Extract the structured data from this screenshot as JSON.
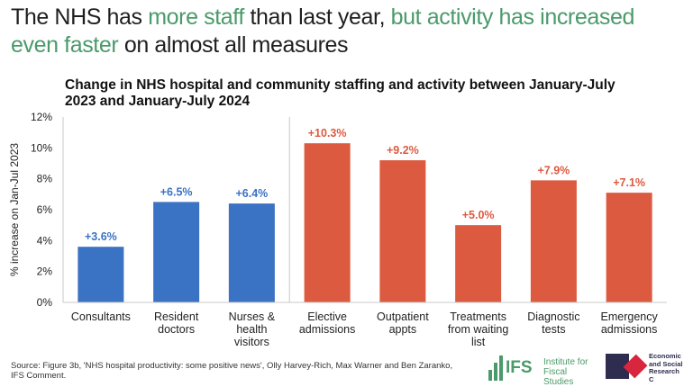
{
  "headline": {
    "part1": "The NHS has ",
    "part2": "more staff",
    "part3": " than last year, ",
    "part4": "but activity has increased even faster",
    "part5": " on almost all measures"
  },
  "chart_data": {
    "type": "bar",
    "title": "Change in NHS hospital and community staffing and activity between January-July 2023 and January-July 2024",
    "ylabel": "% increase on Jan-Jul 2023",
    "ylim": [
      0,
      12
    ],
    "yticks": [
      "0%",
      "2%",
      "4%",
      "6%",
      "8%",
      "10%",
      "12%"
    ],
    "categories": [
      [
        "Consultants"
      ],
      [
        "Resident",
        "doctors"
      ],
      [
        "Nurses &",
        "health",
        "visitors"
      ],
      [
        "Elective",
        "admissions"
      ],
      [
        "Outpatient",
        "appts"
      ],
      [
        "Treatments",
        "from waiting",
        "list"
      ],
      [
        "Diagnostic",
        "tests"
      ],
      [
        "Emergency",
        "admissions"
      ]
    ],
    "values": [
      3.6,
      6.5,
      6.4,
      10.3,
      9.2,
      5.0,
      7.9,
      7.1
    ],
    "data_labels": [
      "+3.6%",
      "+6.5%",
      "+6.4%",
      "+10.3%",
      "+9.2%",
      "+5.0%",
      "+7.9%",
      "+7.1%"
    ],
    "colors": [
      "#3a72c4",
      "#3a72c4",
      "#3a72c4",
      "#dc5a3f",
      "#dc5a3f",
      "#dc5a3f",
      "#dc5a3f",
      "#dc5a3f"
    ],
    "label_colors": [
      "#3a72c4",
      "#3a72c4",
      "#3a72c4",
      "#dc5a3f",
      "#dc5a3f",
      "#dc5a3f",
      "#dc5a3f",
      "#dc5a3f"
    ],
    "grid": false,
    "legend": "none"
  },
  "source": "Source: Figure 3b, 'NHS hospital productivity: some positive news', Olly Harvey-Rich, Max Warner and Ben Zaranko, IFS Comment.",
  "logos": {
    "ifs_mark": "IFS",
    "ifs_name": "Institute for Fiscal Studies",
    "ukri_name": "Economic and Social Research C"
  },
  "colors": {
    "accent_green": "#4a9a6a",
    "staff_blue": "#3a72c4",
    "activity_red": "#dc5a3f"
  }
}
